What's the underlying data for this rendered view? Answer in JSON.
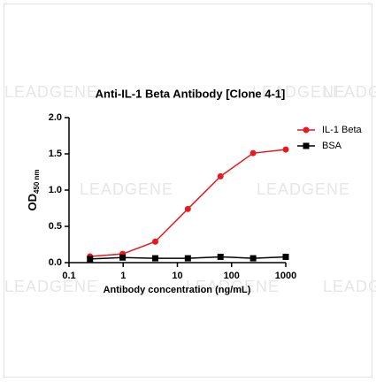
{
  "chart_data": {
    "type": "line",
    "title": "Anti-IL-1 Beta Antibody [Clone 4-1]",
    "x_label": "Antibody concentration (ng/mL)",
    "y_label": "OD",
    "y_label_sub": "450 nm",
    "watermark": "LEADGENE",
    "x": [
      0.244,
      0.977,
      3.91,
      15.6,
      62.5,
      250,
      1000
    ],
    "series": [
      {
        "name": "IL-1 Beta",
        "color": "#e8191f",
        "marker": "circle",
        "values": [
          0.085,
          0.12,
          0.29,
          0.74,
          1.19,
          1.51,
          1.56
        ]
      },
      {
        "name": "BSA",
        "color": "#000000",
        "marker": "square",
        "values": [
          0.05,
          0.07,
          0.06,
          0.06,
          0.08,
          0.06,
          0.08
        ]
      }
    ],
    "xlim": [
      0.1,
      1000
    ],
    "xticks": [
      0.1,
      1,
      10,
      100,
      1000
    ],
    "x_log": true,
    "ylim": [
      0,
      2
    ],
    "yticks": [
      {
        "value": 0,
        "label": "0.0"
      },
      0.5,
      {
        "value": 1,
        "label": "1.0"
      },
      1.5,
      {
        "value": 2,
        "label": "2.0"
      }
    ],
    "grid": false,
    "legend": "top-right"
  }
}
